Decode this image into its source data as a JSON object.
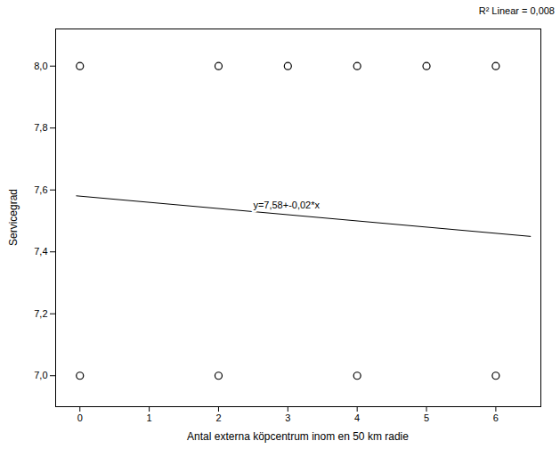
{
  "chart_data": {
    "type": "scatter",
    "x": [
      0,
      0,
      2,
      2,
      3,
      4,
      4,
      5,
      6,
      6
    ],
    "values": [
      8.0,
      7.0,
      8.0,
      7.0,
      8.0,
      8.0,
      7.0,
      8.0,
      8.0,
      7.0
    ],
    "color": "black",
    "marker": "circle",
    "regression_line": {
      "x": [
        -0.05,
        6.5
      ],
      "values": [
        7.581,
        7.45
      ]
    },
    "xlabel": "Antal externa köpcentrum inom en 50 km radie",
    "ylabel": "Servicegrad",
    "xlim": [
      -0.35,
      6.65
    ],
    "ylim": [
      6.9,
      8.12
    ],
    "xticks": [
      0,
      1,
      2,
      3,
      4,
      5,
      6
    ],
    "yticks": [
      {
        "value": 7.0,
        "label": "7,0"
      },
      {
        "value": 7.2,
        "label": "7,2"
      },
      {
        "value": 7.4,
        "label": "7,4"
      },
      {
        "value": 7.6,
        "label": "7,6"
      },
      {
        "value": 7.8,
        "label": "7,8"
      },
      {
        "value": 8.0,
        "label": "8,0"
      }
    ],
    "annotations": [
      {
        "text": "y=7,58+-0,02*x",
        "x": 2.5,
        "y": 7.53
      },
      {
        "text": "R² Linear = 0,008"
      }
    ],
    "grid": false
  }
}
